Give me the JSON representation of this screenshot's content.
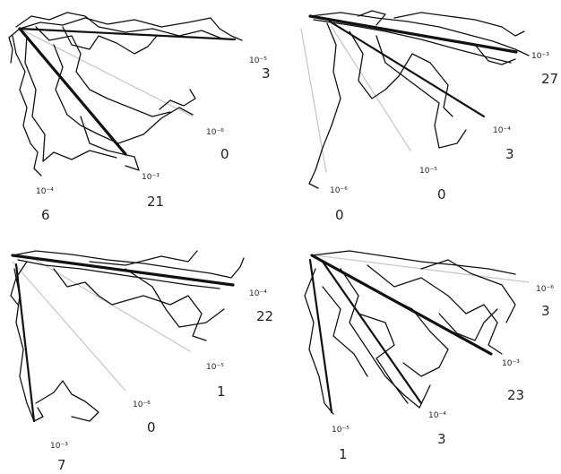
{
  "panels": [
    {
      "id": "a",
      "labels": [
        {
          "exp": "10⁻⁵",
          "count": "3"
        },
        {
          "exp": "10⁻⁶",
          "count": "0"
        },
        {
          "exp": "10⁻³",
          "count": "21"
        },
        {
          "exp": "10⁻⁴",
          "count": "6"
        }
      ]
    },
    {
      "id": "b",
      "labels": [
        {
          "exp": "10⁻³",
          "count": "27"
        },
        {
          "exp": "10⁻⁴",
          "count": "3"
        },
        {
          "exp": "10⁻⁵",
          "count": "0"
        },
        {
          "exp": "10⁻⁶",
          "count": "0"
        }
      ]
    },
    {
      "id": "c",
      "labels": [
        {
          "exp": "10⁻⁴",
          "count": "22"
        },
        {
          "exp": "10⁻⁵",
          "count": "1"
        },
        {
          "exp": "10⁻⁶",
          "count": "0"
        },
        {
          "exp": "10⁻³",
          "count": "7"
        }
      ]
    },
    {
      "id": "d",
      "labels": [
        {
          "exp": "10⁻⁶",
          "count": "3"
        },
        {
          "exp": "10⁻³",
          "count": "23"
        },
        {
          "exp": "10⁻⁴",
          "count": "3"
        },
        {
          "exp": "10⁻⁵",
          "count": "1"
        }
      ]
    }
  ]
}
